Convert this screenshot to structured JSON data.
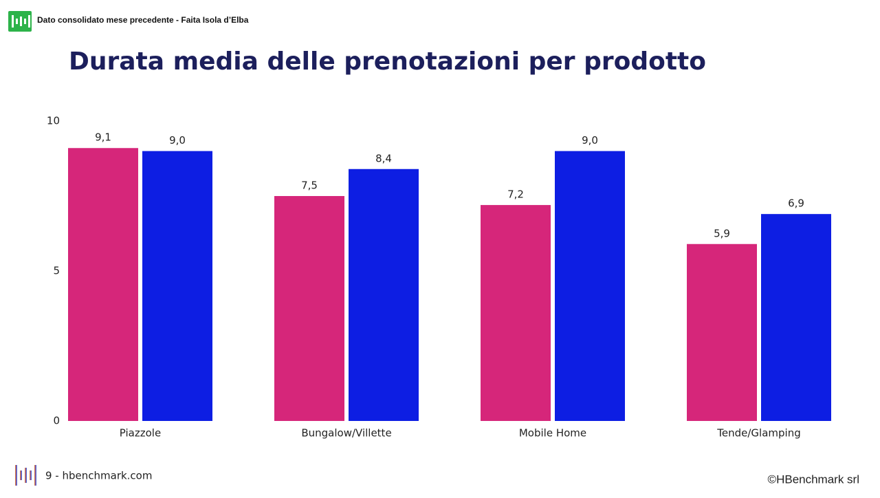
{
  "header": "Dato consolidato mese precedente - Faita Isola d’Elba",
  "footer": {
    "page": "9 - hbenchmark.com",
    "copyright": "©HBenchmark srl"
  },
  "chart_data": {
    "type": "bar",
    "title": "Durata media delle prenotazioni per prodotto",
    "categories": [
      "Piazzole",
      "Bungalow/Villette",
      "Mobile Home",
      "Tende/Glamping"
    ],
    "series": [
      {
        "color": "#d6267a",
        "values": [
          9.1,
          7.5,
          7.2,
          5.9
        ],
        "value_labels": [
          "9,1",
          "7,5",
          "7,2",
          "5,9"
        ]
      },
      {
        "color": "#0d1ee3",
        "values": [
          9.0,
          8.4,
          9.0,
          6.9
        ],
        "value_labels": [
          "9,0",
          "8,4",
          "9,0",
          "6,9"
        ]
      }
    ],
    "ylim": [
      0,
      10
    ],
    "yticks": [
      0,
      5,
      10
    ],
    "grid": false
  }
}
